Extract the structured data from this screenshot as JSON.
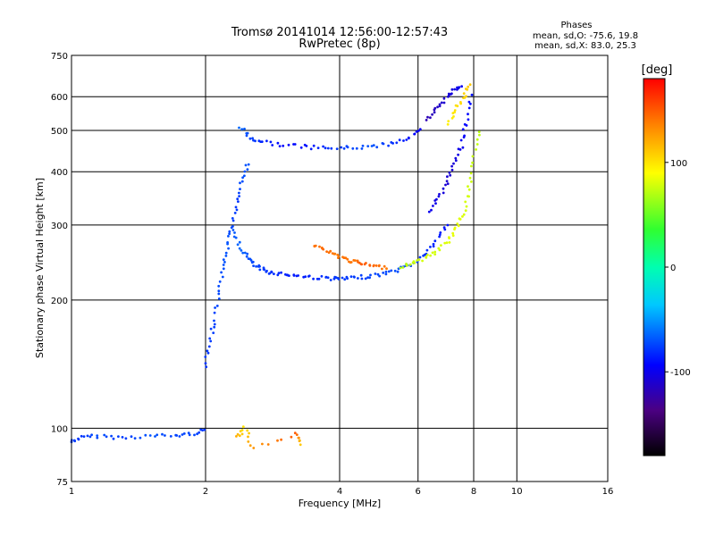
{
  "chart_data": {
    "type": "scatter",
    "title": "Tromsø 20141014 12:56:00-12:57:43",
    "subtitle": "RwPretec (8p)",
    "xlabel": "Frequency [MHz]",
    "ylabel": "Stationary phase Virtual Height [km]",
    "xscale": "log2",
    "yscale": "log",
    "xlim": [
      1,
      16
    ],
    "ylim": [
      75,
      750
    ],
    "x_ticks": [
      "1",
      "2",
      "4",
      "6",
      "8",
      "10",
      "16"
    ],
    "x_tick_values": [
      1,
      2,
      4,
      6,
      8,
      10,
      16
    ],
    "y_ticks": [
      "75",
      "100",
      "200",
      "300",
      "400",
      "500",
      "600",
      "750"
    ],
    "y_tick_values": [
      75,
      100,
      200,
      300,
      400,
      500,
      600,
      750
    ],
    "grid": true,
    "stats": {
      "header": "Phases",
      "line1": "mean, sd,O: -75.6, 19.8",
      "line2": "mean, sd,X:  83.0, 25.3"
    },
    "colorbar": {
      "label": "[deg]",
      "range": [
        -180,
        180
      ],
      "ticks": [
        "100",
        "0",
        "-100"
      ],
      "tick_values": [
        100,
        0,
        -100
      ],
      "colormap": "rainbow: black -> purple -> blue -> cyan -> green -> yellow -> orange -> red"
    },
    "series": [
      {
        "segments": [
          {
            "f": [
              1.0,
              1.05,
              1.15,
              1.3,
              1.5,
              1.7,
              1.85,
              2.0
            ],
            "h": [
              93,
              95,
              96,
              95,
              96,
              96,
              97,
              99
            ],
            "phase": [
              -75,
              -80,
              -72,
              -78,
              -70,
              -76,
              -74,
              -80
            ]
          },
          {
            "f": [
              2.0,
              2.05,
              2.1,
              2.15,
              2.2,
              2.25,
              2.3,
              2.35,
              2.4,
              2.5
            ],
            "h": [
              140,
              160,
              180,
              210,
              240,
              270,
              300,
              340,
              380,
              420
            ],
            "phase": [
              -80,
              -78,
              -76,
              -74,
              -72,
              -70,
              -75,
              -80,
              -72,
              -70
            ]
          },
          {
            "f": [
              2.3,
              2.4,
              2.5,
              2.6,
              2.7,
              2.8,
              3.0,
              3.2,
              3.5,
              3.8,
              4.0,
              4.3,
              4.6,
              5.0,
              5.4,
              5.8,
              6.2,
              6.6,
              7.0
            ],
            "h": [
              290,
              265,
              250,
              240,
              235,
              232,
              230,
              228,
              226,
              225,
              224,
              225,
              227,
              230,
              235,
              242,
              255,
              275,
              300
            ],
            "phase": [
              -70,
              -65,
              -72,
              -75,
              -78,
              -80,
              -85,
              -88,
              -84,
              -80,
              -78,
              -78,
              -76,
              -74,
              -72,
              -74,
              -80,
              -85,
              -90
            ]
          },
          {
            "f": [
              2.4,
              2.5,
              2.7,
              3.0,
              3.4,
              3.8,
              4.2,
              4.7,
              5.2,
              5.7,
              6.1
            ],
            "h": [
              510,
              480,
              470,
              462,
              457,
              454,
              455,
              458,
              466,
              480,
              500
            ],
            "phase": [
              -65,
              -75,
              -85,
              -95,
              -90,
              -80,
              -75,
              -70,
              -80,
              -90,
              -100
            ]
          },
          {
            "f": [
              6.4,
              6.7,
              7.0,
              7.2,
              7.5,
              7.7,
              7.9
            ],
            "h": [
              320,
              350,
              380,
              420,
              460,
              520,
              600
            ],
            "phase": [
              -100,
              -105,
              -110,
              -108,
              -100,
              -95,
              -90
            ]
          },
          {
            "f": [
              6.3,
              6.6,
              6.9,
              7.2,
              7.5
            ],
            "h": [
              530,
              560,
              590,
              620,
              640
            ],
            "phase": [
              -120,
              -115,
              -110,
              -105,
              -100
            ]
          }
        ]
      },
      {
        "segments": [
          {
            "f": [
              3.5,
              3.7,
              3.9,
              4.1,
              4.3,
              4.5,
              4.8,
              5.1
            ],
            "h": [
              270,
              262,
              255,
              250,
              246,
              243,
              240,
              238
            ],
            "phase": [
              140,
              145,
              138,
              142,
              140,
              150,
              145,
              140
            ]
          },
          {
            "f": [
              5.5,
              5.8,
              6.2,
              6.6,
              7.0,
              7.3,
              7.6,
              7.8,
              8.0,
              8.2
            ],
            "h": [
              240,
              244,
              250,
              260,
              275,
              295,
              320,
              360,
              420,
              500
            ],
            "phase": [
              70,
              75,
              80,
              78,
              82,
              85,
              80,
              78,
              75,
              72
            ]
          },
          {
            "f": [
              7.0,
              7.3,
              7.6,
              7.8
            ],
            "h": [
              520,
              560,
              600,
              640
            ],
            "phase": [
              95,
              100,
              105,
              110
            ]
          },
          {
            "f": [
              2.35,
              2.45,
              2.55,
              3.2,
              3.25
            ],
            "h": [
              95,
              100,
              90,
              97,
              92
            ],
            "phase": [
              120,
              100,
              130,
              150,
              110
            ]
          }
        ]
      }
    ]
  }
}
